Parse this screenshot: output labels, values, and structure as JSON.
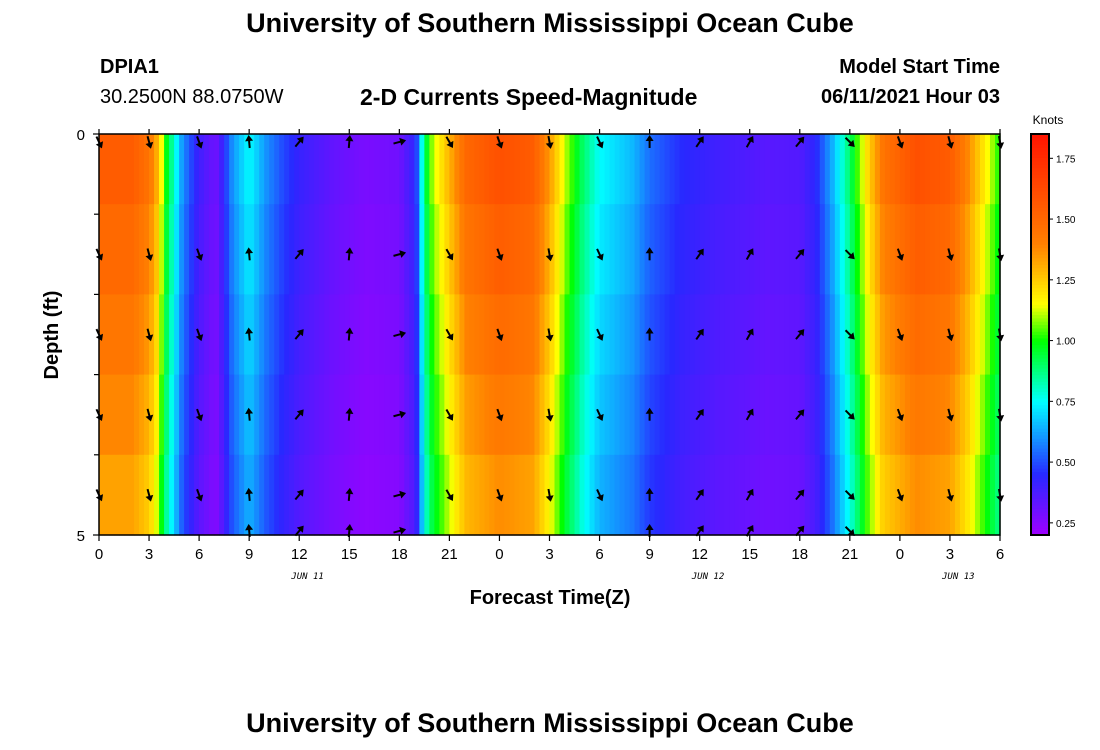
{
  "header": {
    "title": "University of Southern Mississippi Ocean Cube",
    "station_id": "DPIA1",
    "coords": "30.2500N  88.0750W",
    "subtitle": "2-D Currents Speed-Magnitude",
    "model_label": "Model Start Time",
    "model_value": "06/11/2021 Hour 03"
  },
  "footer": {
    "title": "University of Southern Mississippi Ocean Cube"
  },
  "chart_data": {
    "type": "heatmap",
    "xlabel": "Forecast Time(Z)",
    "ylabel": "Depth (ft)",
    "x_hours": [
      0,
      54
    ],
    "x_ticks": [
      {
        "h": 0,
        "label": "0"
      },
      {
        "h": 3,
        "label": "3"
      },
      {
        "h": 6,
        "label": "6"
      },
      {
        "h": 9,
        "label": "9"
      },
      {
        "h": 12,
        "label": "12"
      },
      {
        "h": 15,
        "label": "15"
      },
      {
        "h": 18,
        "label": "18"
      },
      {
        "h": 21,
        "label": "21"
      },
      {
        "h": 24,
        "label": "0"
      },
      {
        "h": 27,
        "label": "3"
      },
      {
        "h": 30,
        "label": "6"
      },
      {
        "h": 33,
        "label": "9"
      },
      {
        "h": 36,
        "label": "12"
      },
      {
        "h": 39,
        "label": "15"
      },
      {
        "h": 42,
        "label": "18"
      },
      {
        "h": 45,
        "label": "21"
      },
      {
        "h": 48,
        "label": "0"
      },
      {
        "h": 51,
        "label": "3"
      },
      {
        "h": 54,
        "label": "6"
      }
    ],
    "day_labels": [
      {
        "h": 12.5,
        "label": "JUN 11"
      },
      {
        "h": 36.5,
        "label": "JUN 12"
      },
      {
        "h": 51.5,
        "label": "JUN 13"
      }
    ],
    "y_range": [
      0,
      5
    ],
    "y_tick_labels": [
      {
        "v": 0,
        "label": "0"
      },
      {
        "v": 5,
        "label": "5"
      }
    ],
    "y_minor_ticks": [
      1,
      2,
      3,
      4
    ],
    "depth_levels": [
      0.25,
      1.5,
      2.5,
      3.5,
      4.5
    ],
    "speed_profile": [
      {
        "h": 0,
        "v": 1.55
      },
      {
        "h": 2,
        "v": 1.55
      },
      {
        "h": 3,
        "v": 1.45
      },
      {
        "h": 3.5,
        "v": 1.3
      },
      {
        "h": 4,
        "v": 1.0
      },
      {
        "h": 4.5,
        "v": 0.8
      },
      {
        "h": 5,
        "v": 0.6
      },
      {
        "h": 6,
        "v": 0.4
      },
      {
        "h": 7,
        "v": 0.3
      },
      {
        "h": 8,
        "v": 0.6
      },
      {
        "h": 9,
        "v": 0.75
      },
      {
        "h": 10,
        "v": 0.6
      },
      {
        "h": 11,
        "v": 0.5
      },
      {
        "h": 12,
        "v": 0.42
      },
      {
        "h": 14,
        "v": 0.33
      },
      {
        "h": 16,
        "v": 0.28
      },
      {
        "h": 18,
        "v": 0.3
      },
      {
        "h": 19,
        "v": 0.45
      },
      {
        "h": 19.5,
        "v": 0.9
      },
      {
        "h": 20,
        "v": 1.1
      },
      {
        "h": 21,
        "v": 1.3
      },
      {
        "h": 22,
        "v": 1.5
      },
      {
        "h": 24,
        "v": 1.6
      },
      {
        "h": 26,
        "v": 1.55
      },
      {
        "h": 27,
        "v": 1.35
      },
      {
        "h": 28,
        "v": 1.1
      },
      {
        "h": 29,
        "v": 0.9
      },
      {
        "h": 30,
        "v": 0.75
      },
      {
        "h": 31,
        "v": 0.7
      },
      {
        "h": 32,
        "v": 0.65
      },
      {
        "h": 33,
        "v": 0.55
      },
      {
        "h": 35,
        "v": 0.45
      },
      {
        "h": 37,
        "v": 0.4
      },
      {
        "h": 40,
        "v": 0.35
      },
      {
        "h": 42,
        "v": 0.36
      },
      {
        "h": 43,
        "v": 0.45
      },
      {
        "h": 44,
        "v": 0.65
      },
      {
        "h": 45,
        "v": 0.9
      },
      {
        "h": 46,
        "v": 1.2
      },
      {
        "h": 47,
        "v": 1.45
      },
      {
        "h": 49,
        "v": 1.6
      },
      {
        "h": 51,
        "v": 1.55
      },
      {
        "h": 52,
        "v": 1.4
      },
      {
        "h": 53,
        "v": 1.2
      },
      {
        "h": 54,
        "v": 1.0
      }
    ],
    "arrows": [
      {
        "h": 0,
        "dir": 155
      },
      {
        "h": 3,
        "dir": 165
      },
      {
        "h": 6,
        "dir": 160
      },
      {
        "h": 9,
        "dir": -5
      },
      {
        "h": 12,
        "dir": 40
      },
      {
        "h": 15,
        "dir": 5
      },
      {
        "h": 18,
        "dir": 75
      },
      {
        "h": 21,
        "dir": 150
      },
      {
        "h": 24,
        "dir": 160
      },
      {
        "h": 27,
        "dir": 170
      },
      {
        "h": 30,
        "dir": 155
      },
      {
        "h": 33,
        "dir": 0
      },
      {
        "h": 36,
        "dir": 35
      },
      {
        "h": 39,
        "dir": 30
      },
      {
        "h": 42,
        "dir": 40
      },
      {
        "h": 45,
        "dir": 135
      },
      {
        "h": 48,
        "dir": 160
      },
      {
        "h": 51,
        "dir": 165
      },
      {
        "h": 54,
        "dir": 170
      }
    ],
    "colorbar": {
      "title": "Knots",
      "range": [
        0.2,
        1.85
      ],
      "ticks": [
        {
          "v": 1.75,
          "label": "1.75"
        },
        {
          "v": 1.5,
          "label": "1.50"
        },
        {
          "v": 1.25,
          "label": "1.25"
        },
        {
          "v": 1.0,
          "label": "1.00"
        },
        {
          "v": 0.75,
          "label": "0.75"
        },
        {
          "v": 0.5,
          "label": "0.50"
        },
        {
          "v": 0.25,
          "label": "0.25"
        }
      ],
      "colors": [
        "#a000ff",
        "#2828ff",
        "#00ffff",
        "#00ff00",
        "#ffff00",
        "#ff8000",
        "#ff1400"
      ],
      "stops": [
        0.2,
        0.45,
        0.75,
        1.0,
        1.15,
        1.4,
        1.85
      ]
    }
  }
}
